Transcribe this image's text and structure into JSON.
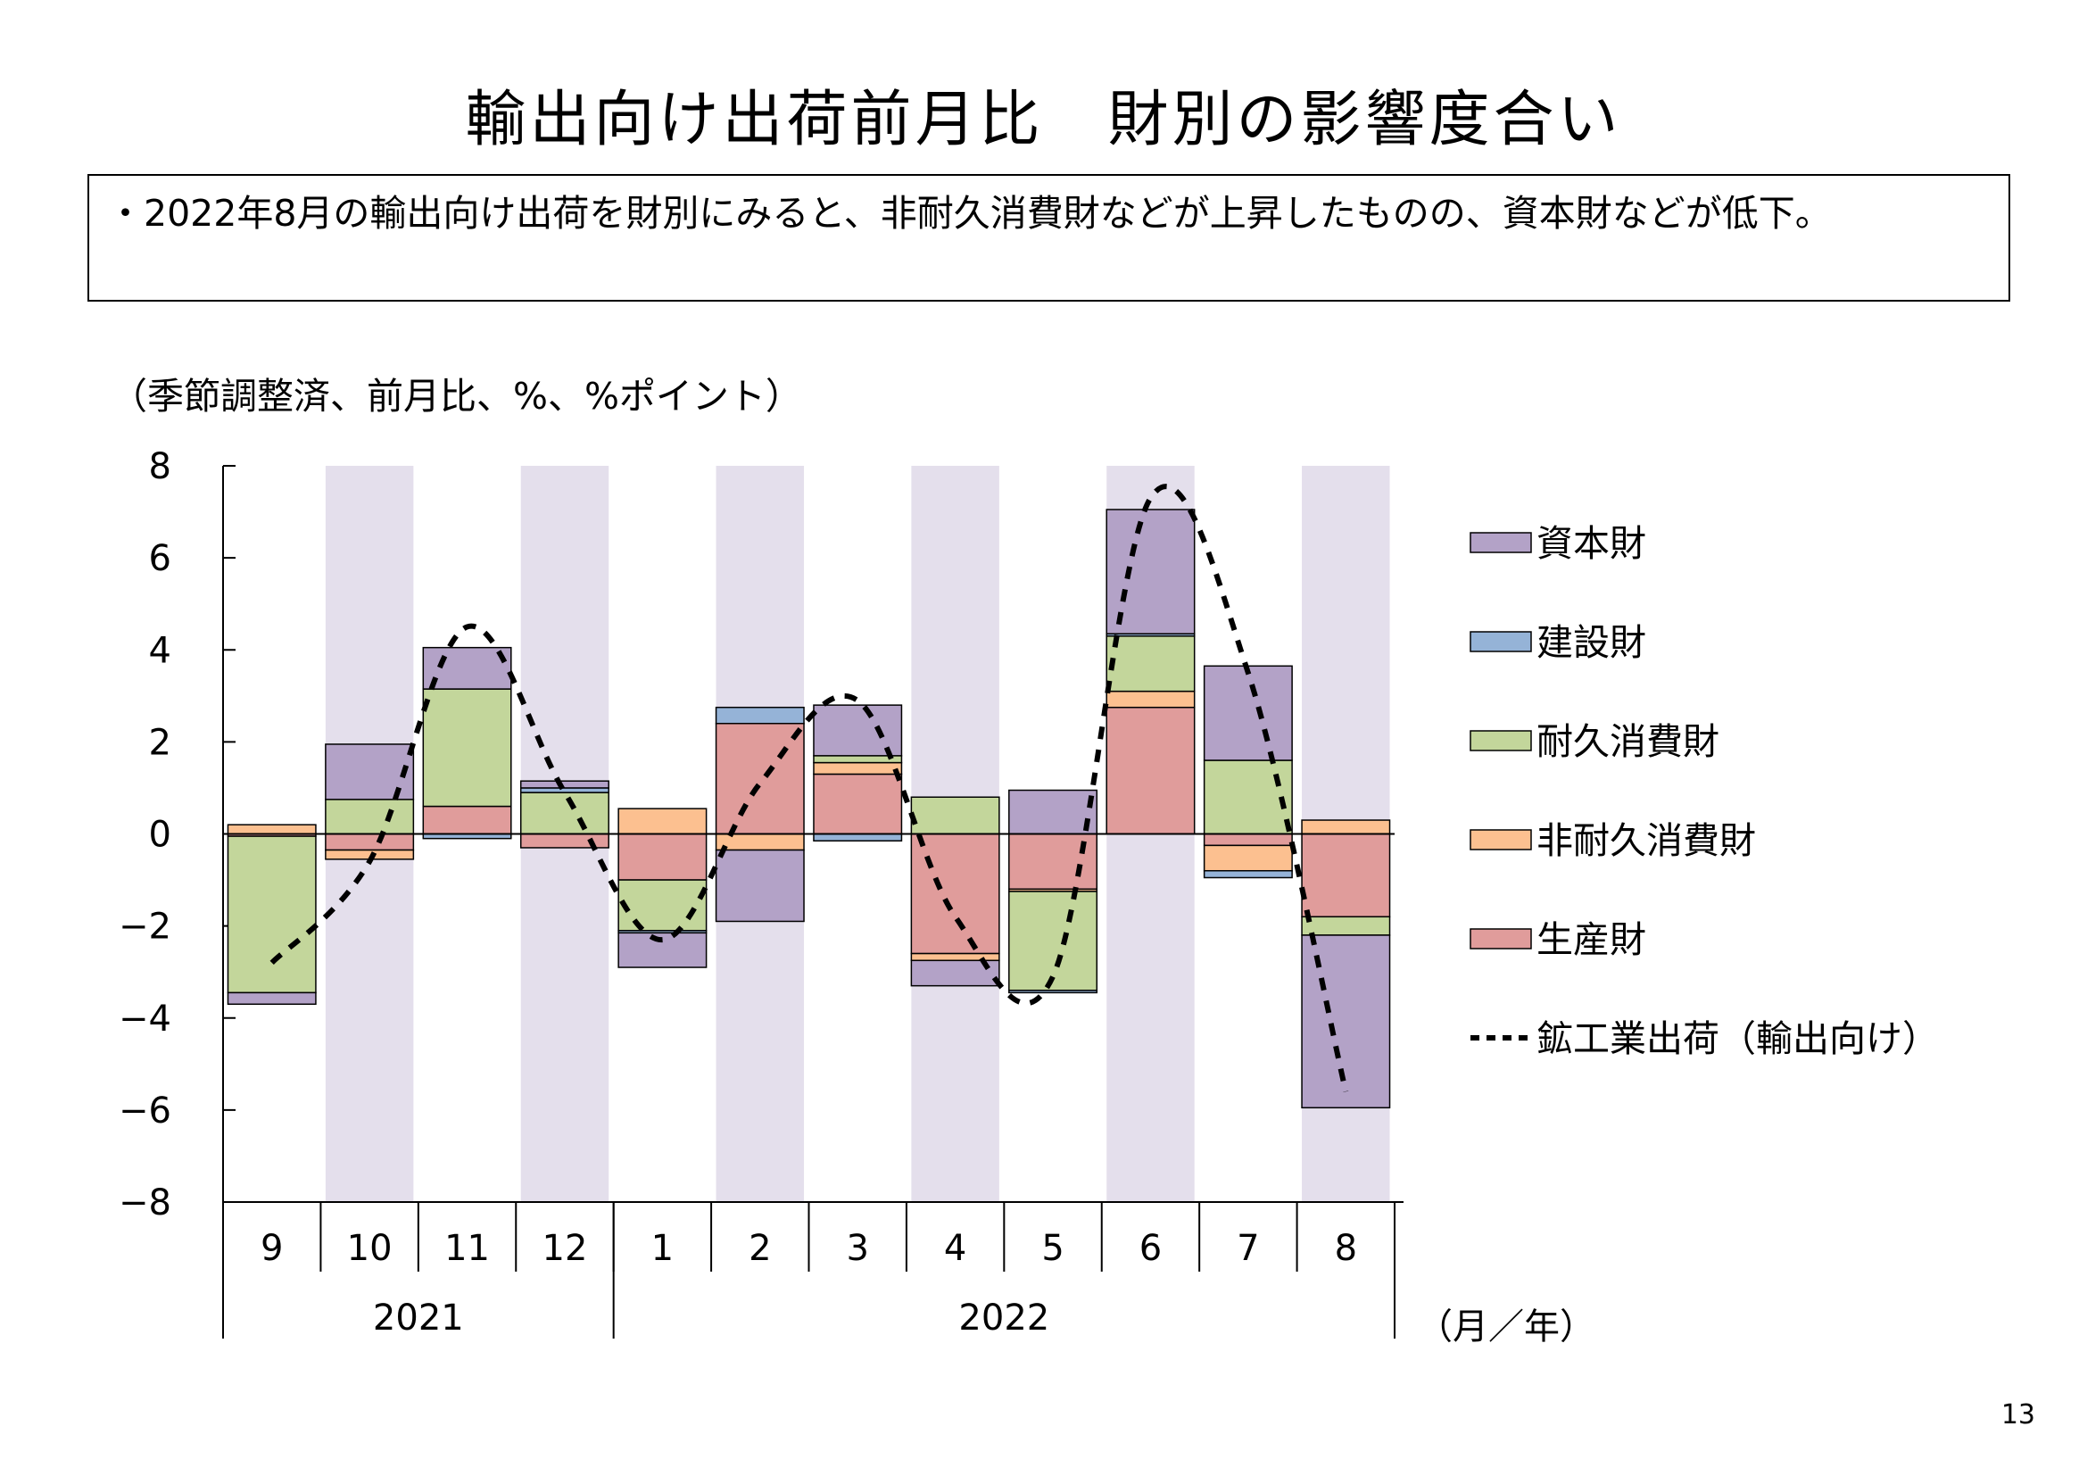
{
  "title": "輸出向け出荷前月比　財別の影響度合い",
  "summary": "・2022年8月の輸出向け出荷を財別にみると、非耐久消費財などが上昇したものの、資本財などが低下。",
  "unit_note": "（季節調整済、前月比、%、%ポイント）",
  "page_number": "13",
  "colors": {
    "資本財": "#b3a2c7",
    "建設財": "#95b3d7",
    "耐久消費財": "#c3d69b",
    "非耐久消費財": "#fcc090",
    "生産財": "#e09c9b",
    "shade": "#e4dfec",
    "line": "#000000"
  },
  "chart_data": {
    "type": "bar",
    "stacked": true,
    "categories": [
      "9",
      "10",
      "11",
      "12",
      "1",
      "2",
      "3",
      "4",
      "5",
      "6",
      "7",
      "8"
    ],
    "year_groups": [
      {
        "label": "2021",
        "from": 0,
        "to": 3
      },
      {
        "label": "2022",
        "from": 4,
        "to": 11
      }
    ],
    "axis_unit_label": "（月／年）",
    "ylim": [
      -8,
      8
    ],
    "yticks": [
      "8",
      "6",
      "4",
      "2",
      "0",
      "−2",
      "−4",
      "−6",
      "−8"
    ],
    "shaded_categories": [
      1,
      3,
      5,
      7,
      9,
      11
    ],
    "series": [
      {
        "name": "生産財",
        "values": [
          -0.05,
          -0.35,
          0.6,
          -0.3,
          -1.0,
          2.4,
          1.3,
          -2.6,
          -1.2,
          2.75,
          -0.25,
          -1.8
        ]
      },
      {
        "name": "非耐久消費財",
        "values": [
          0.2,
          -0.2,
          0.0,
          0.0,
          0.55,
          -0.35,
          0.25,
          -0.15,
          -0.05,
          0.35,
          -0.55,
          0.3
        ]
      },
      {
        "name": "耐久消費財",
        "values": [
          -3.4,
          0.75,
          2.55,
          0.9,
          -1.1,
          0.0,
          0.15,
          0.8,
          -2.15,
          1.2,
          1.6,
          -0.4
        ]
      },
      {
        "name": "建設財",
        "values": [
          0.0,
          0.0,
          -0.1,
          0.1,
          -0.05,
          0.35,
          -0.15,
          0.0,
          -0.05,
          0.05,
          -0.15,
          0.0
        ]
      },
      {
        "name": "資本財",
        "values": [
          -0.25,
          1.2,
          0.9,
          0.15,
          -0.75,
          -1.55,
          1.1,
          -0.55,
          0.95,
          2.7,
          2.05,
          -3.75
        ]
      }
    ],
    "line": {
      "name": "鉱工業出荷（輸出向け）",
      "values": [
        -2.8,
        -0.6,
        4.5,
        0.9,
        -2.3,
        1.1,
        2.9,
        -1.8,
        -3.1,
        7.3,
        3.5,
        -5.6
      ]
    },
    "legend": [
      {
        "label": "資本財",
        "key": "資本財"
      },
      {
        "label": "建設財",
        "key": "建設財"
      },
      {
        "label": "耐久消費財",
        "key": "耐久消費財"
      },
      {
        "label": "非耐久消費財",
        "key": "非耐久消費財"
      },
      {
        "label": "生産財",
        "key": "生産財"
      },
      {
        "label": "鉱工業出荷（輸出向け）",
        "key": "line"
      }
    ],
    "legend_position": "right"
  }
}
